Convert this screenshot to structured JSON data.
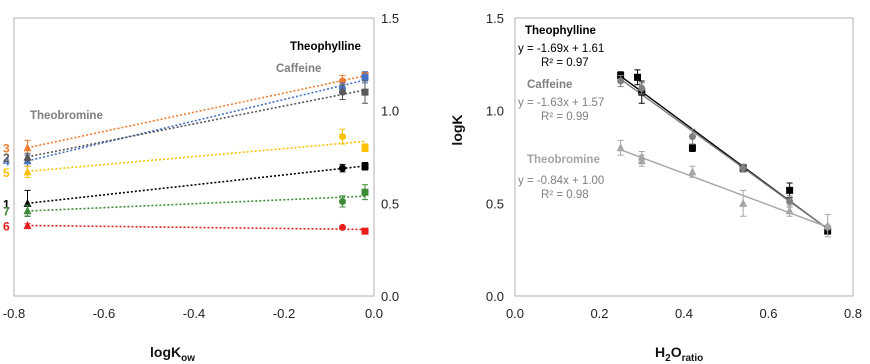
{
  "chart_data": [
    {
      "type": "scatter",
      "xlabel_main": "logK",
      "xlabel_sub": "ow",
      "xlim": [
        -0.8,
        0.0
      ],
      "ylim": [
        0.0,
        1.5
      ],
      "x_ticks": [
        "-0.8",
        "-0.6",
        "-0.4",
        "-0.2",
        "0.0"
      ],
      "y_ticks": [
        "0.0",
        "0.5",
        "1.0",
        "1.5"
      ],
      "series": [
        {
          "name": "3",
          "color": "#ED7D31",
          "points": [
            {
              "x": -0.77,
              "y": 0.8,
              "err": 0.04
            },
            {
              "x": -0.07,
              "y": 1.16,
              "err": 0.03
            },
            {
              "x": -0.02,
              "y": 1.19,
              "err": 0.02
            }
          ]
        },
        {
          "name": "4",
          "color": "#4472C4",
          "points": [
            {
              "x": -0.77,
              "y": 0.73,
              "err": 0.03
            },
            {
              "x": -0.07,
              "y": 1.12,
              "err": 0.03
            },
            {
              "x": -0.02,
              "y": 1.18,
              "err": 0.03
            }
          ]
        },
        {
          "name": "2",
          "color": "#595959",
          "points": [
            {
              "x": -0.77,
              "y": 0.75,
              "err": 0.02
            },
            {
              "x": -0.07,
              "y": 1.1,
              "err": 0.04
            },
            {
              "x": -0.02,
              "y": 1.1,
              "err": 0.06
            }
          ]
        },
        {
          "name": "5",
          "color": "#FFC000",
          "points": [
            {
              "x": -0.77,
              "y": 0.67,
              "err": 0.03
            },
            {
              "x": -0.07,
              "y": 0.86,
              "err": 0.04
            },
            {
              "x": -0.02,
              "y": 0.8,
              "err": 0.02
            }
          ]
        },
        {
          "name": "1",
          "color": "#000000",
          "points": [
            {
              "x": -0.77,
              "y": 0.5,
              "err": 0.07
            },
            {
              "x": -0.07,
              "y": 0.69,
              "err": 0.02
            },
            {
              "x": -0.02,
              "y": 0.7,
              "err": 0.02
            }
          ]
        },
        {
          "name": "7",
          "color": "#3D8B37",
          "points": [
            {
              "x": -0.77,
              "y": 0.46,
              "err": 0.03
            },
            {
              "x": -0.07,
              "y": 0.51,
              "err": 0.03
            },
            {
              "x": -0.02,
              "y": 0.56,
              "err": 0.04
            }
          ]
        },
        {
          "name": "6",
          "color": "#E81C1C",
          "points": [
            {
              "x": -0.77,
              "y": 0.38,
              "err": 0.01
            },
            {
              "x": -0.07,
              "y": 0.37,
              "err": 0.01
            },
            {
              "x": -0.02,
              "y": 0.35,
              "err": 0.01
            }
          ]
        }
      ],
      "annotations": {
        "theobromine": "Theobromine",
        "caffeine": "Caffeine",
        "theophylline": "Theophylline"
      }
    },
    {
      "type": "scatter",
      "xlabel_main": "H",
      "xlabel_mid": "2",
      "xlabel_end": "O",
      "xlabel_sub": "ratio",
      "ylabel": "logK",
      "xlim": [
        0.0,
        0.8
      ],
      "ylim": [
        0.0,
        1.5
      ],
      "x_ticks": [
        "0.0",
        "0.2",
        "0.4",
        "0.6",
        "0.8"
      ],
      "y_ticks": [
        "0.0",
        "0.5",
        "1.0",
        "1.5"
      ],
      "series": [
        {
          "name": "Theophylline",
          "color": "#000000",
          "marker": "square",
          "equation": "y = -1.69x + 1.61",
          "r2": "R² = 0.97",
          "points": [
            {
              "x": 0.25,
              "y": 1.19,
              "err": 0.02
            },
            {
              "x": 0.29,
              "y": 1.18,
              "err": 0.04
            },
            {
              "x": 0.3,
              "y": 1.1,
              "err": 0.06
            },
            {
              "x": 0.42,
              "y": 0.8,
              "err": 0.02
            },
            {
              "x": 0.54,
              "y": 0.69,
              "err": 0.02
            },
            {
              "x": 0.65,
              "y": 0.57,
              "err": 0.04
            },
            {
              "x": 0.74,
              "y": 0.35,
              "err": 0.01
            }
          ]
        },
        {
          "name": "Caffeine",
          "color": "#808080",
          "marker": "circle",
          "equation": "y = -1.63x + 1.57",
          "r2": "R² = 0.99",
          "points": [
            {
              "x": 0.25,
              "y": 1.16,
              "err": 0.03
            },
            {
              "x": 0.3,
              "y": 1.12,
              "err": 0.03
            },
            {
              "x": 0.42,
              "y": 0.86,
              "err": 0.04
            },
            {
              "x": 0.54,
              "y": 0.69,
              "err": 0.02
            },
            {
              "x": 0.65,
              "y": 0.51,
              "err": 0.03
            },
            {
              "x": 0.74,
              "y": 0.37,
              "err": 0.01
            }
          ]
        },
        {
          "name": "Theobromine",
          "color": "#A6A6A6",
          "marker": "triangle",
          "equation": "y = -0.84x + 1.00",
          "r2": "R² = 0.98",
          "points": [
            {
              "x": 0.25,
              "y": 0.8,
              "err": 0.04
            },
            {
              "x": 0.3,
              "y": 0.75,
              "err": 0.03
            },
            {
              "x": 0.3,
              "y": 0.73,
              "err": 0.03
            },
            {
              "x": 0.42,
              "y": 0.67,
              "err": 0.03
            },
            {
              "x": 0.54,
              "y": 0.5,
              "err": 0.07
            },
            {
              "x": 0.65,
              "y": 0.46,
              "err": 0.03
            },
            {
              "x": 0.74,
              "y": 0.38,
              "err": 0.06
            }
          ]
        }
      ]
    }
  ]
}
